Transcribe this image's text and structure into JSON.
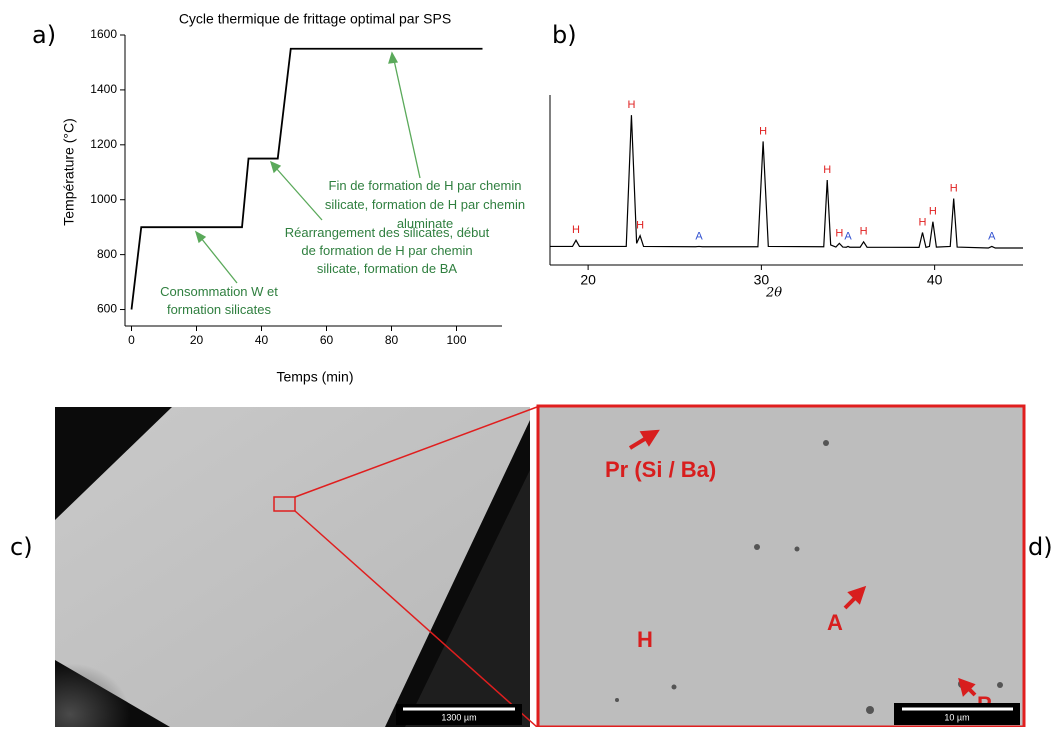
{
  "panel_labels": [
    "a)",
    "b)",
    "c)",
    "d)"
  ],
  "chart_data": [
    {
      "type": "line",
      "title": "Cycle thermique de frittage optimal par SPS",
      "xlabel": "Temps (min)",
      "ylabel": "Température (°C)",
      "x": [
        0,
        3,
        34,
        36,
        45,
        49,
        108
      ],
      "values": [
        600,
        900,
        900,
        1150,
        1150,
        1550,
        1550
      ],
      "color": "#000000",
      "xlim": [
        -2,
        114
      ],
      "ylim": [
        540,
        1600
      ],
      "xticks": [
        0,
        20,
        40,
        60,
        80,
        100
      ],
      "yticks": [
        600,
        800,
        1000,
        1200,
        1400,
        1600
      ],
      "annotation_color": "#2f7f3f",
      "annotations": [
        [
          "Fin de formation de H par chemin",
          "silicate, formation de H par chemin",
          "aluminate"
        ],
        [
          "Réarrangement des silicates, début",
          "de formation de H par chemin",
          "silicate, formation de BA"
        ],
        [
          "Consommation W et",
          "formation silicates"
        ]
      ]
    },
    {
      "type": "line",
      "xlabel": "2θ",
      "x": [
        17.8,
        19.1,
        19.3,
        19.5,
        22.2,
        22.5,
        22.8,
        23.0,
        23.2,
        26.2,
        26.4,
        26.6,
        29.8,
        30.1,
        30.4,
        33.6,
        33.8,
        34.0,
        34.3,
        34.5,
        34.7,
        34.9,
        35.0,
        35.1,
        35.7,
        35.9,
        36.1,
        39.1,
        39.3,
        39.5,
        39.7,
        39.9,
        40.1,
        40.9,
        41.1,
        41.3,
        43.1,
        43.3,
        43.5,
        45.1
      ],
      "values": [
        2,
        2,
        6,
        2,
        2,
        87,
        4,
        9,
        2,
        1.8,
        2,
        1.8,
        1.8,
        70,
        2,
        1.8,
        45,
        3,
        1.6,
        4,
        1.6,
        1.5,
        2,
        1.5,
        1.5,
        5,
        1.5,
        1.4,
        11,
        1.4,
        2,
        18,
        1.6,
        2,
        33,
        1.6,
        1,
        2,
        1,
        1
      ],
      "color": "#000000",
      "xlim": [
        17.8,
        45.1
      ],
      "ylim": [
        -10,
        100
      ],
      "xticks": [
        20,
        30,
        40
      ],
      "peak_labels": {
        "x": [
          19.3,
          22.5,
          23.0,
          26.4,
          30.1,
          33.8,
          34.5,
          35.0,
          35.9,
          39.3,
          39.9,
          41.1,
          43.3
        ],
        "labels": [
          "H",
          "H",
          "H",
          "A",
          "H",
          "H",
          "H",
          "A",
          "H",
          "H",
          "H",
          "H",
          "A"
        ]
      },
      "label_colors": {
        "H": "#e02020",
        "A": "#3050d0"
      }
    }
  ],
  "micrographs": {
    "c": {
      "scale_bar": "1300 µm"
    },
    "d": {
      "scale_bar": "10 µm",
      "labels": [
        "Pr (Si / Ba)",
        "H",
        "A",
        "P"
      ]
    }
  }
}
